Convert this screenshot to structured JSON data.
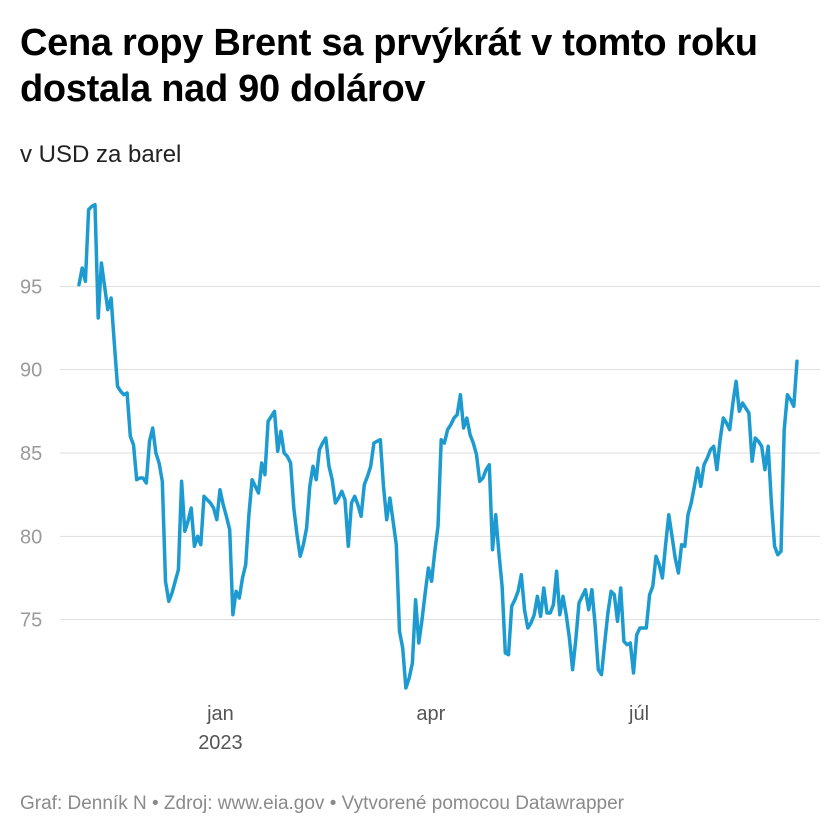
{
  "title": "Cena ropy Brent sa prvýkrát v tomto roku dostala nad 90 dolárov",
  "subtitle": "v USD za barel",
  "footer": "Graf: Denník N • Zdroj: www.eia.gov • Vytvorené pomocou Datawrapper",
  "chart_data": {
    "type": "line",
    "title": "Cena ropy Brent sa prvýkrát v tomto roku dostala nad 90 dolárov",
    "ylabel": "v USD za barel",
    "xlabel": "",
    "ylim": [
      70,
      100
    ],
    "yticks": [
      75,
      80,
      85,
      90,
      95
    ],
    "xticks": [
      {
        "x": 0.197,
        "label": "jan",
        "sublabel": "2023"
      },
      {
        "x": 0.49,
        "label": "apr",
        "sublabel": ""
      },
      {
        "x": 0.78,
        "label": "júl",
        "sublabel": ""
      }
    ],
    "grid": true,
    "legend": "none",
    "color": "#1d9bd1",
    "series": [
      {
        "values": [
          95.1,
          96.1,
          95.3,
          99.6,
          99.8,
          99.9,
          93.1,
          96.4,
          95.0,
          93.6,
          94.3,
          91.6,
          89.0,
          88.7,
          88.5,
          88.6,
          86.0,
          85.5,
          83.4,
          83.5,
          83.5,
          83.2,
          85.7,
          86.5,
          85.0,
          84.4,
          83.3,
          77.3,
          76.1,
          76.6,
          77.3,
          78.0,
          83.3,
          80.3,
          80.9,
          81.7,
          79.4,
          80.0,
          79.5,
          82.4,
          82.2,
          82.0,
          81.7,
          81.0,
          82.8,
          81.9,
          81.2,
          80.4,
          75.3,
          76.7,
          76.3,
          77.5,
          78.3,
          81.3,
          83.4,
          83.0,
          82.6,
          84.4,
          83.7,
          86.9,
          87.2,
          87.5,
          85.1,
          86.3,
          85.0,
          84.8,
          84.4,
          81.7,
          80.1,
          78.8,
          79.5,
          80.5,
          83.0,
          84.2,
          83.4,
          85.2,
          85.6,
          85.9,
          84.2,
          83.4,
          82.0,
          82.3,
          82.7,
          82.2,
          79.4,
          82.0,
          82.4,
          81.9,
          81.2,
          83.1,
          83.6,
          84.2,
          85.6,
          85.7,
          85.8,
          83.0,
          81.0,
          82.3,
          80.9,
          79.5,
          74.3,
          73.3,
          70.9,
          71.5,
          72.4,
          76.2,
          73.6,
          75.0,
          76.6,
          78.1,
          77.3,
          79.1,
          80.6,
          85.8,
          85.6,
          86.4,
          86.7,
          87.1,
          87.3,
          88.5,
          86.5,
          87.1,
          86.1,
          85.6,
          84.9,
          83.3,
          83.5,
          84.0,
          84.3,
          79.2,
          81.3,
          79.0,
          77.0,
          73.0,
          72.9,
          75.8,
          76.2,
          76.7,
          77.7,
          75.6,
          74.5,
          74.8,
          75.3,
          76.4,
          75.2,
          76.9,
          75.4,
          75.4,
          75.9,
          77.9,
          75.3,
          76.4,
          75.3,
          73.9,
          72.0,
          73.8,
          76.0,
          76.4,
          76.8,
          75.6,
          76.8,
          74.7,
          72.0,
          71.7,
          73.6,
          75.4,
          76.7,
          76.5,
          74.9,
          76.9,
          73.7,
          73.5,
          73.6,
          71.8,
          74.1,
          74.5,
          74.5,
          74.5,
          76.5,
          77.0,
          78.8,
          78.3,
          77.5,
          79.5,
          81.3,
          80.0,
          78.7,
          77.8,
          79.5,
          79.4,
          81.3,
          82.0,
          83.0,
          84.1,
          83.0,
          84.3,
          84.7,
          85.2,
          85.4,
          84.0,
          85.8,
          87.1,
          86.8,
          86.4,
          88.0,
          89.3,
          87.5,
          88.0,
          87.7,
          87.4,
          84.5,
          85.9,
          85.7,
          85.4,
          84.0,
          85.4,
          82.0,
          79.4,
          78.9,
          79.1,
          86.4,
          88.5,
          88.2,
          87.8,
          90.5
        ]
      }
    ]
  }
}
